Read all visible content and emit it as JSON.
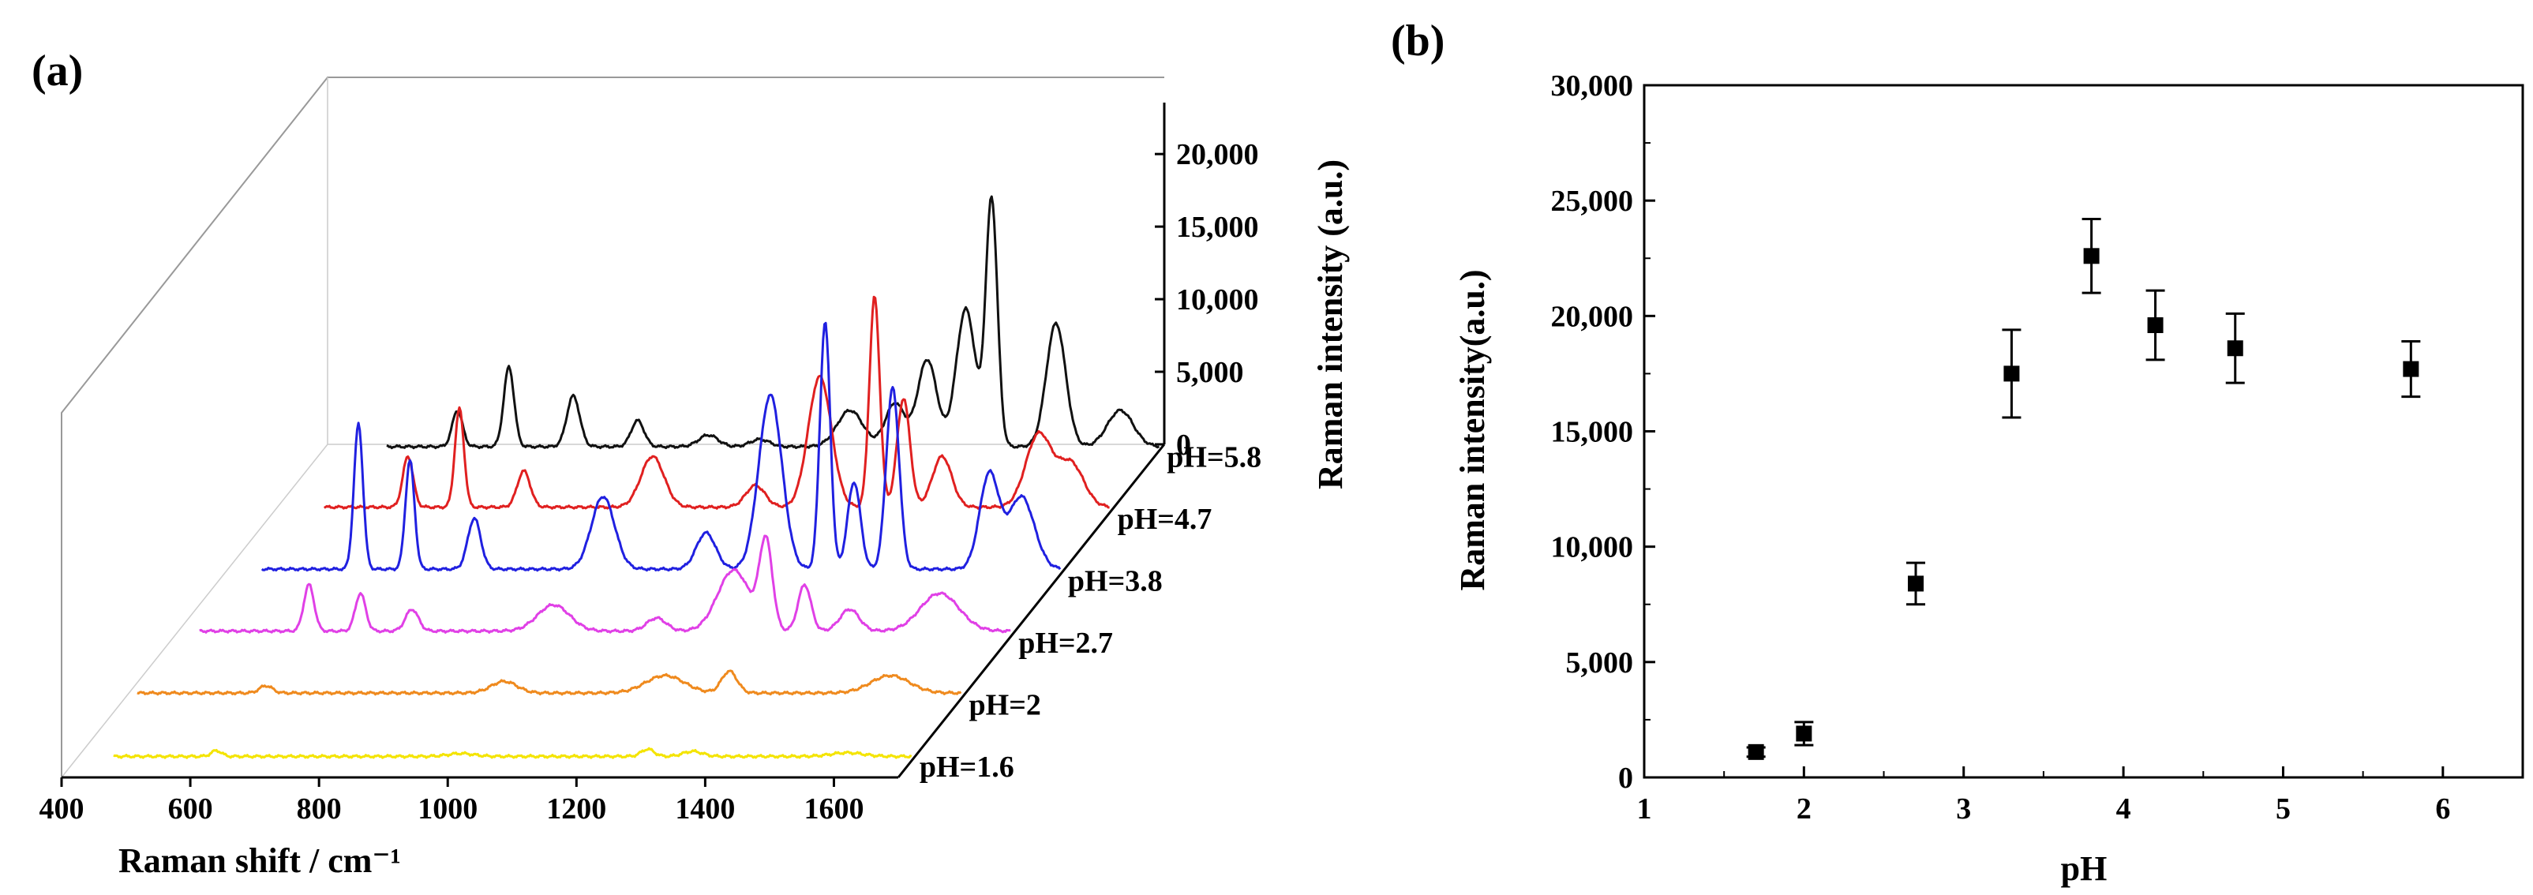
{
  "chart_data": [
    {
      "panel": "(a)",
      "type": "line",
      "style": "3d-waterfall",
      "xlabel": "Raman shift / cm⁻¹",
      "zlabel": "Raman intensity (a.u.)",
      "xlim": [
        400,
        1700
      ],
      "x_ticks": [
        "400",
        "600",
        "800",
        "1000",
        "1200",
        "1400",
        "1600"
      ],
      "z_ticks": [
        "0",
        "5,000",
        "10,000",
        "15,000",
        "20,000"
      ],
      "zlim": [
        0,
        23000
      ],
      "series": [
        {
          "name": "pH=1.6",
          "color": "#f4e400",
          "baseline": 300,
          "peaks": [
            [
              620,
              400,
              8
            ],
            [
              1000,
              200,
              20
            ],
            [
              1290,
              500,
              10
            ],
            [
              1360,
              350,
              15
            ],
            [
              1600,
              250,
              25
            ]
          ]
        },
        {
          "name": "pH=2",
          "color": "#ef8a1e",
          "baseline": 400,
          "peaks": [
            [
              620,
              500,
              10
            ],
            [
              990,
              800,
              20
            ],
            [
              1240,
              1200,
              30
            ],
            [
              1340,
              1500,
              12
            ],
            [
              1590,
              1200,
              30
            ]
          ]
        },
        {
          "name": "pH=2.7",
          "color": "#e040e6",
          "baseline": 400,
          "peaks": [
            [
              610,
              3200,
              8
            ],
            [
              690,
              2600,
              8
            ],
            [
              770,
              1500,
              10
            ],
            [
              990,
              1800,
              25
            ],
            [
              1150,
              900,
              15
            ],
            [
              1270,
              4200,
              25
            ],
            [
              1320,
              6000,
              10
            ],
            [
              1380,
              3200,
              10
            ],
            [
              1450,
              1500,
              15
            ],
            [
              1590,
              2600,
              30
            ]
          ]
        },
        {
          "name": "pH=3.8",
          "color": "#2020e0",
          "baseline": 400,
          "peaks": [
            [
              610,
              10000,
              7
            ],
            [
              690,
              7500,
              7
            ],
            [
              790,
              3500,
              10
            ],
            [
              990,
              5000,
              18
            ],
            [
              1150,
              2500,
              15
            ],
            [
              1250,
              12000,
              18
            ],
            [
              1335,
              17000,
              8
            ],
            [
              1380,
              6000,
              10
            ],
            [
              1440,
              12500,
              10
            ],
            [
              1590,
              6500,
              15
            ],
            [
              1640,
              5000,
              20
            ]
          ]
        },
        {
          "name": "pH=4.7",
          "color": "#e02020",
          "baseline": 400,
          "peaks": [
            [
              610,
              3500,
              8
            ],
            [
              690,
              6800,
              7
            ],
            [
              790,
              2500,
              10
            ],
            [
              990,
              3500,
              18
            ],
            [
              1150,
              1500,
              15
            ],
            [
              1250,
              9000,
              18
            ],
            [
              1335,
              14500,
              8
            ],
            [
              1380,
              7500,
              10
            ],
            [
              1440,
              3500,
              15
            ],
            [
              1590,
              5000,
              20
            ],
            [
              1640,
              3000,
              20
            ]
          ]
        },
        {
          "name": "pH=5.8",
          "color": "#111111",
          "baseline": 300,
          "peaks": [
            [
              610,
              2500,
              8
            ],
            [
              690,
              5500,
              8
            ],
            [
              790,
              3500,
              10
            ],
            [
              890,
              1800,
              10
            ],
            [
              1000,
              800,
              15
            ],
            [
              1080,
              500,
              15
            ],
            [
              1220,
              2500,
              20
            ],
            [
              1290,
              3000,
              15
            ],
            [
              1340,
              6000,
              15
            ],
            [
              1400,
              9500,
              15
            ],
            [
              1440,
              17000,
              9
            ],
            [
              1540,
              8500,
              15
            ],
            [
              1640,
              2500,
              20
            ]
          ]
        }
      ]
    },
    {
      "panel": "(b)",
      "type": "scatter",
      "xlabel": "pH",
      "ylabel": "Raman intensity(a.u.)",
      "xlim": [
        1,
        6.5
      ],
      "ylim": [
        0,
        30000
      ],
      "x_ticks": [
        "1",
        "2",
        "3",
        "4",
        "5",
        "6"
      ],
      "y_ticks": [
        "0",
        "5,000",
        "10,000",
        "15,000",
        "20,000",
        "25,000",
        "30,000"
      ],
      "points": [
        {
          "x": 1.7,
          "y": 1100,
          "err": 200
        },
        {
          "x": 2.0,
          "y": 1900,
          "err": 500
        },
        {
          "x": 2.7,
          "y": 8400,
          "err": 900
        },
        {
          "x": 3.3,
          "y": 17500,
          "err": 1900
        },
        {
          "x": 3.8,
          "y": 22600,
          "err": 1600
        },
        {
          "x": 4.2,
          "y": 19600,
          "err": 1500
        },
        {
          "x": 4.7,
          "y": 18600,
          "err": 1500
        },
        {
          "x": 5.8,
          "y": 17700,
          "err": 1200
        }
      ]
    }
  ]
}
